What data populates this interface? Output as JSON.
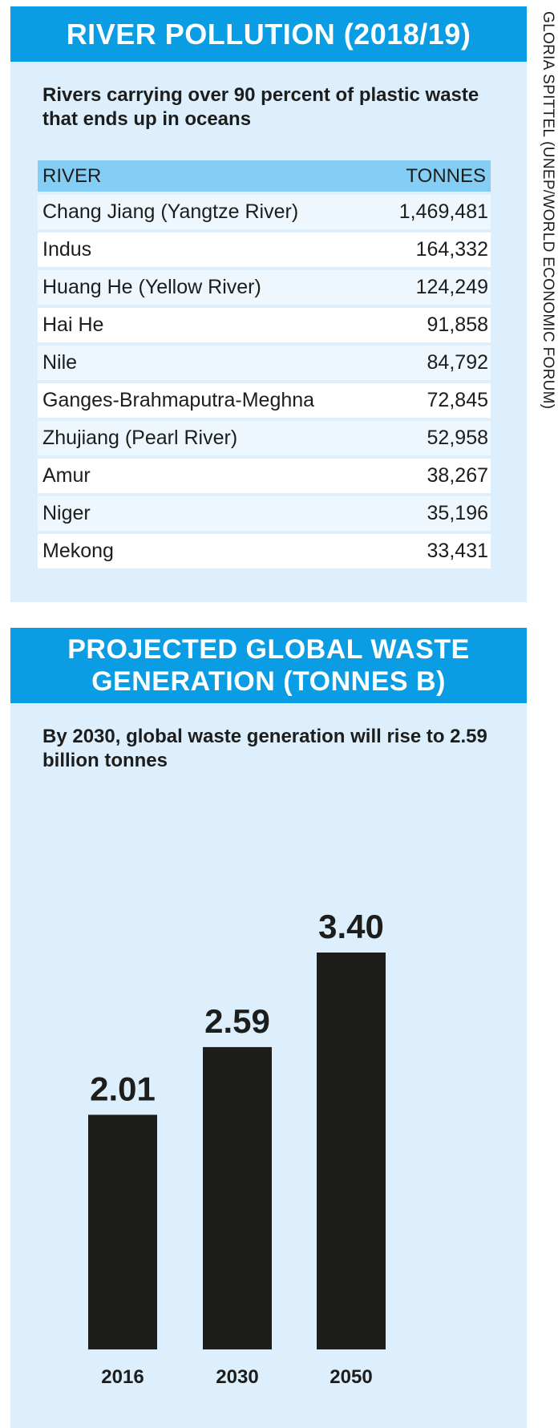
{
  "credit": "GLORIA SPITTEL (UNEP/WORLD ECONOMIC FORUM)",
  "colors": {
    "header_blue": "#0a9de3",
    "panel_bg": "#ddeffc",
    "table_header": "#84cef6",
    "bar": "#1d1d1b"
  },
  "river_panel": {
    "title": "RIVER POLLUTION (2018/19)",
    "subtitle": "Rivers carrying over 90 percent of plastic waste that ends up in oceans",
    "columns": [
      "RIVER",
      "TONNES"
    ],
    "rows": [
      {
        "river": "Chang Jiang (Yangtze River)",
        "tonnes": "1,469,481"
      },
      {
        "river": "Indus",
        "tonnes": "164,332"
      },
      {
        "river": "Huang He (Yellow River)",
        "tonnes": "124,249"
      },
      {
        "river": "Hai He",
        "tonnes": "91,858"
      },
      {
        "river": "Nile",
        "tonnes": "84,792"
      },
      {
        "river": "Ganges-Brahmaputra-Meghna",
        "tonnes": "72,845"
      },
      {
        "river": "Zhujiang (Pearl River)",
        "tonnes": "52,958"
      },
      {
        "river": "Amur",
        "tonnes": "38,267"
      },
      {
        "river": "Niger",
        "tonnes": "35,196"
      },
      {
        "river": "Mekong",
        "tonnes": "33,431"
      }
    ]
  },
  "waste_panel": {
    "title_line1": "PROJECTED GLOBAL WASTE",
    "title_line2": "GENERATION (TONNES B)",
    "subtitle": "By 2030, global waste generation will rise to 2.59 billion tonnes"
  },
  "chart_data": [
    {
      "type": "table",
      "title": "RIVER POLLUTION (2018/19)",
      "columns": [
        "RIVER",
        "TONNES"
      ],
      "rows": [
        [
          "Chang Jiang (Yangtze River)",
          1469481
        ],
        [
          "Indus",
          164332
        ],
        [
          "Huang He (Yellow River)",
          124249
        ],
        [
          "Hai He",
          91858
        ],
        [
          "Nile",
          84792
        ],
        [
          "Ganges-Brahmaputra-Meghna",
          72845
        ],
        [
          "Zhujiang (Pearl River)",
          52958
        ],
        [
          "Amur",
          38267
        ],
        [
          "Niger",
          35196
        ],
        [
          "Mekong",
          33431
        ]
      ]
    },
    {
      "type": "bar",
      "title": "PROJECTED GLOBAL WASTE GENERATION (TONNES B)",
      "categories": [
        "2016",
        "2030",
        "2050"
      ],
      "values": [
        2.01,
        2.59,
        3.4
      ],
      "value_labels": [
        "2.01",
        "2.59",
        "3.40"
      ],
      "xlabel": "",
      "ylabel": "",
      "ylim": [
        0,
        3.4
      ],
      "grid": false,
      "bar_color": "#1d1d1b"
    }
  ]
}
